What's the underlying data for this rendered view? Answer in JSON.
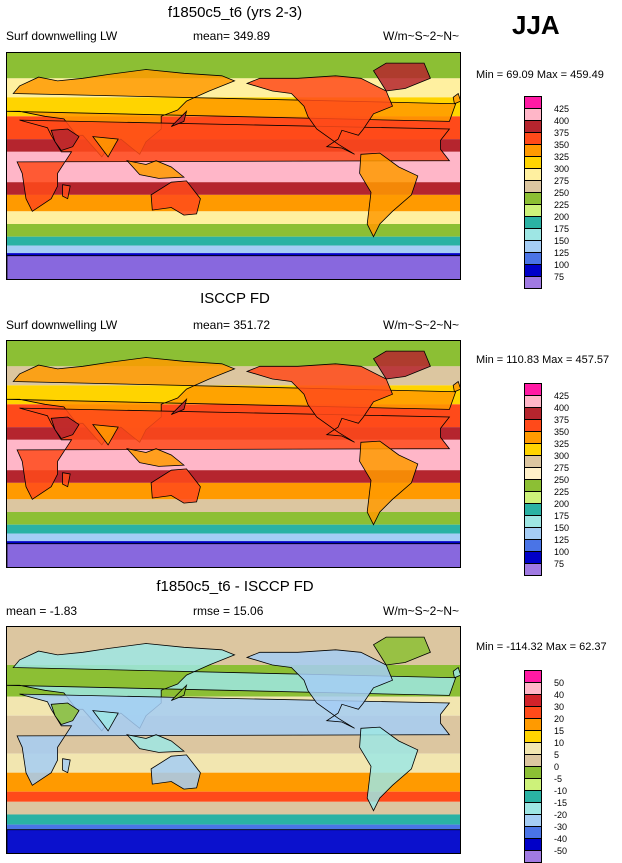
{
  "season": "JJA",
  "panels": [
    {
      "title": "f1850c5_t6 (yrs 2-3)",
      "left_label": "Surf downwelling LW",
      "center_label": "mean= 349.89",
      "right_label": "W/m~S~2~N~",
      "minmax": "Min =  69.09 Max = 459.49",
      "kind": "abs",
      "legend_colors": [
        "#ff1aa4",
        "#ffb6c8",
        "#b5252e",
        "#ff4a1a",
        "#ff9a00",
        "#ffd400",
        "#fff0a0",
        "#dcc6a0",
        "#8cbf34",
        "#cdf27a",
        "#2ab2a4",
        "#9ee6e4",
        "#a5cdf5",
        "#4a74e6",
        "#0000c8",
        "#a07ae2"
      ],
      "legend_labels": [
        "425",
        "400",
        "375",
        "350",
        "325",
        "300",
        "275",
        "250",
        "225",
        "200",
        "175",
        "150",
        "125",
        "100",
        "75"
      ]
    },
    {
      "title": "ISCCP FD",
      "left_label": "Surf downwelling LW",
      "center_label": "mean= 351.72",
      "right_label": "W/m~S~2~N~",
      "minmax": "Min = 110.83 Max = 457.57",
      "kind": "abs",
      "legend_colors": [
        "#ff1aa4",
        "#ffb6c8",
        "#b5252e",
        "#ff4a1a",
        "#ff9a00",
        "#ffd400",
        "#dcc6a0",
        "#fff0c8",
        "#8cbf34",
        "#cdf27a",
        "#2ab2a4",
        "#9ee6e4",
        "#a5cdf5",
        "#4a74e6",
        "#0000c8",
        "#a07ae2"
      ],
      "legend_labels": [
        "425",
        "400",
        "375",
        "350",
        "325",
        "300",
        "275",
        "250",
        "225",
        "200",
        "175",
        "150",
        "125",
        "100",
        "75"
      ]
    },
    {
      "title": "f1850c5_t6 - ISCCP FD",
      "left_label": "mean =  -1.83",
      "center_label": "rmse =  15.06",
      "right_label": "W/m~S~2~N~",
      "minmax": "Min = -114.32 Max =  62.37",
      "kind": "diff",
      "legend_colors": [
        "#ff1aa4",
        "#ffb6c8",
        "#d2222a",
        "#ff4a1a",
        "#ff9a00",
        "#ffd400",
        "#f2e6b0",
        "#dcc6a0",
        "#8cbf34",
        "#cdf27a",
        "#2ab2a4",
        "#9ee6e4",
        "#a5cdf5",
        "#4a74e6",
        "#0000c8",
        "#a07ae2"
      ],
      "legend_labels": [
        "50",
        "40",
        "30",
        "20",
        "15",
        "10",
        "5",
        "0",
        "-5",
        "-10",
        "-15",
        "-20",
        "-30",
        "-40",
        "-50"
      ]
    }
  ]
}
